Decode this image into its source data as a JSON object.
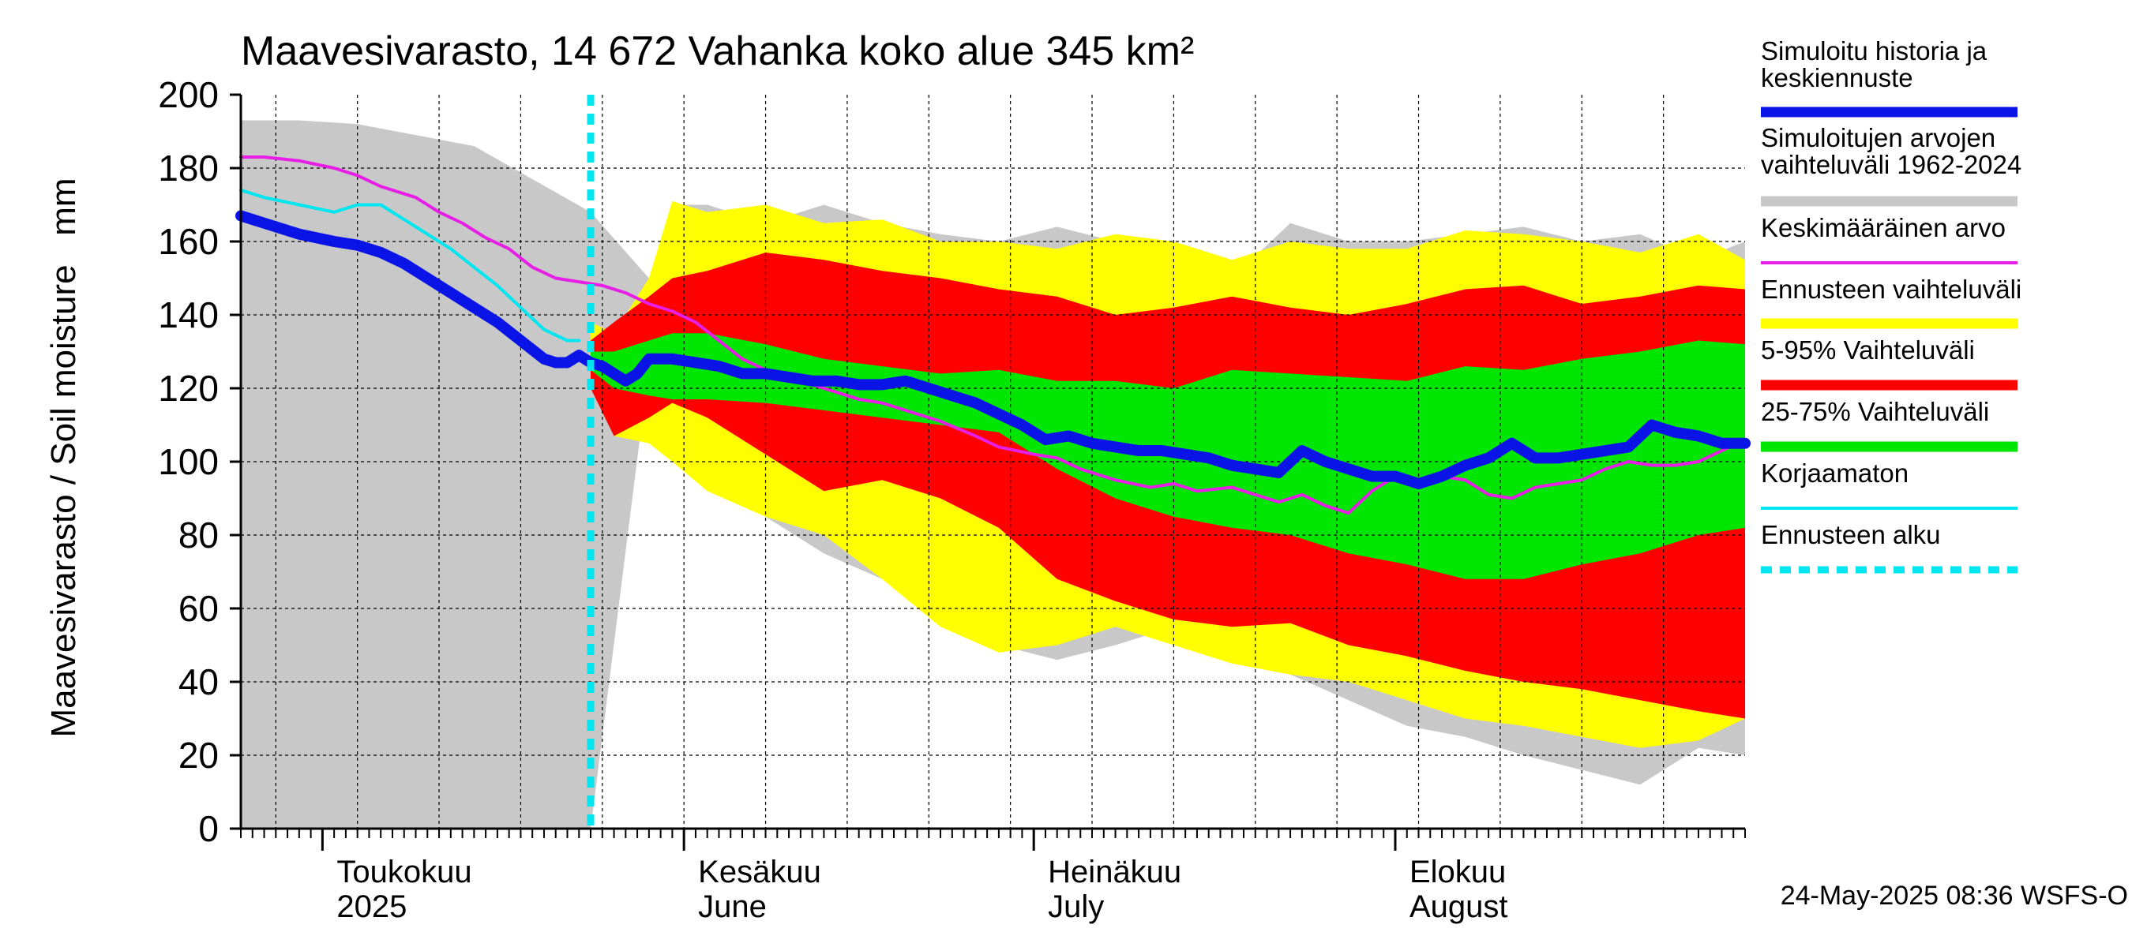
{
  "chart_data": {
    "type": "area",
    "title": "Maavesivarasto, 14 672 Vahanka koko alue 345 km²",
    "ylabel": "Maavesivarasto / Soil moisture   mm",
    "ylim": [
      0,
      200
    ],
    "yticks": [
      0,
      20,
      40,
      60,
      80,
      100,
      120,
      140,
      160,
      180,
      200
    ],
    "x_range": [
      "2025-04-24",
      "2025-08-31"
    ],
    "month_labels": [
      {
        "line1": "Toukokuu",
        "line2": "2025",
        "date": "2025-05-01"
      },
      {
        "line1": "Kesäkuu",
        "line2": "June",
        "date": "2025-06-01"
      },
      {
        "line1": "Heinäkuu",
        "line2": "July",
        "date": "2025-07-01"
      },
      {
        "line1": "Elokuu",
        "line2": "August",
        "date": "2025-08-01"
      }
    ],
    "forecast_start": "2025-05-24",
    "footer": "24-May-2025 08:36 WSFS-O",
    "legend": [
      {
        "label": "Simuloitu historia ja\nkeskiennuste",
        "color": "#0a14e6",
        "style": "thick"
      },
      {
        "label": "Simuloitujen arvojen\nvaihteluväli 1962-2024",
        "color": "#c8c8c8",
        "style": "band"
      },
      {
        "label": "Keskimääräinen arvo",
        "color": "#e61ee6",
        "style": "line"
      },
      {
        "label": "Ennusteen vaihteluväli",
        "color": "#ffff00",
        "style": "band"
      },
      {
        "label": "5-95% Vaihteluväli",
        "color": "#ff0000",
        "style": "band"
      },
      {
        "label": "25-75% Vaihteluväli",
        "color": "#00e600",
        "style": "band"
      },
      {
        "label": "Korjaamaton",
        "color": "#00e6f0",
        "style": "line"
      },
      {
        "label": "Ennusteen alku",
        "color": "#00e6f0",
        "style": "dashed"
      }
    ],
    "series": {
      "hist_range": {
        "name": "Simuloitujen arvojen vaihteluväli 1962-2024",
        "color": "#c8c8c8",
        "x": [
          0,
          5,
          10,
          20,
          30,
          35,
          37,
          40,
          45,
          50,
          55,
          60,
          65,
          70,
          75,
          80,
          85,
          90,
          95,
          100,
          105,
          110,
          115,
          120,
          125,
          129
        ],
        "upper": [
          193,
          193,
          192,
          186,
          168,
          150,
          170,
          170,
          165,
          170,
          165,
          162,
          160,
          164,
          160,
          160,
          150,
          165,
          160,
          160,
          162,
          164,
          160,
          162,
          155,
          160
        ],
        "lower": [
          null,
          null,
          null,
          null,
          null,
          126,
          108,
          100,
          85,
          75,
          68,
          60,
          50,
          46,
          50,
          55,
          48,
          42,
          35,
          28,
          25,
          20,
          16,
          12,
          22,
          20
        ]
      },
      "forecast_range": {
        "name": "Ennusteen vaihteluväli",
        "color": "#ffff00",
        "x": [
          30,
          32,
          35,
          37,
          40,
          45,
          50,
          55,
          60,
          65,
          70,
          75,
          80,
          85,
          90,
          95,
          100,
          105,
          110,
          115,
          120,
          125,
          129
        ],
        "upper": [
          138,
          135,
          150,
          171,
          168,
          170,
          165,
          166,
          160,
          160,
          158,
          162,
          160,
          155,
          160,
          158,
          158,
          163,
          162,
          160,
          157,
          162,
          155
        ],
        "lower": [
          125,
          107,
          105,
          100,
          92,
          85,
          80,
          68,
          55,
          48,
          50,
          55,
          50,
          45,
          42,
          40,
          35,
          30,
          28,
          25,
          22,
          24,
          30
        ]
      },
      "p5_95": {
        "name": "5-95% Vaihteluväli",
        "color": "#ff0000",
        "x": [
          30,
          32,
          35,
          37,
          40,
          45,
          50,
          55,
          60,
          65,
          70,
          75,
          80,
          85,
          90,
          95,
          100,
          105,
          110,
          115,
          120,
          125,
          129
        ],
        "upper": [
          133,
          138,
          145,
          150,
          152,
          157,
          155,
          152,
          150,
          147,
          145,
          140,
          142,
          145,
          142,
          140,
          143,
          147,
          148,
          143,
          145,
          148,
          147
        ],
        "lower": [
          120,
          107,
          112,
          116,
          112,
          102,
          92,
          95,
          90,
          82,
          68,
          62,
          57,
          55,
          56,
          50,
          47,
          43,
          40,
          38,
          35,
          32,
          30
        ]
      },
      "p25_75": {
        "name": "25-75% Vaihteluväli",
        "color": "#00e600",
        "x": [
          30,
          32,
          35,
          37,
          40,
          45,
          50,
          55,
          60,
          65,
          70,
          75,
          80,
          85,
          90,
          95,
          100,
          105,
          110,
          115,
          120,
          125,
          129
        ],
        "upper": [
          130,
          130,
          133,
          135,
          135,
          132,
          128,
          126,
          124,
          125,
          122,
          122,
          120,
          125,
          124,
          123,
          122,
          126,
          125,
          128,
          130,
          133,
          132
        ],
        "lower": [
          125,
          120,
          118,
          117,
          117,
          116,
          114,
          112,
          110,
          108,
          98,
          90,
          85,
          82,
          80,
          75,
          72,
          68,
          68,
          72,
          75,
          80,
          82
        ],
        "dash": false
      },
      "mean": {
        "name": "Keskimääräinen arvo",
        "color": "#e61ee6",
        "x": [
          0,
          2,
          5,
          8,
          10,
          12,
          15,
          17,
          19,
          21,
          23,
          25,
          27,
          29,
          31,
          33,
          35,
          37,
          39,
          41,
          43,
          45,
          47,
          50,
          53,
          55,
          57,
          60,
          63,
          65,
          68,
          70,
          72,
          75,
          78,
          80,
          82,
          85,
          87,
          89,
          91,
          93,
          95,
          97,
          99,
          101,
          103,
          105,
          107,
          109,
          111,
          113,
          115,
          117,
          119,
          121,
          123,
          125,
          127,
          129
        ],
        "values": [
          183,
          183,
          182,
          180,
          178,
          175,
          172,
          168,
          165,
          161,
          158,
          153,
          150,
          149,
          148,
          146,
          143,
          141,
          138,
          133,
          128,
          125,
          123,
          120,
          117,
          116,
          114,
          111,
          107,
          104,
          102,
          101,
          98,
          95,
          93,
          94,
          92,
          93,
          91,
          89,
          91,
          88,
          86,
          92,
          96,
          95,
          96,
          95,
          91,
          90,
          93,
          94,
          95,
          98,
          100,
          99,
          99,
          100,
          103,
          106
        ]
      },
      "uncorrected": {
        "name": "Korjaamaton",
        "color": "#00e6f0",
        "x": [
          0,
          2,
          5,
          8,
          10,
          12,
          14,
          16,
          18,
          20,
          22,
          24,
          26,
          28,
          29
        ],
        "values": [
          174,
          172,
          170,
          168,
          170,
          170,
          166,
          162,
          158,
          153,
          148,
          142,
          136,
          133,
          133
        ]
      },
      "main": {
        "name": "Simuloitu historia ja keskiennuste",
        "color": "#0a14e6",
        "x": [
          0,
          2,
          5,
          8,
          10,
          12,
          14,
          16,
          18,
          20,
          22,
          24,
          26,
          27,
          28,
          29,
          30,
          31,
          32,
          33,
          34,
          35,
          37,
          39,
          41,
          43,
          45,
          47,
          49,
          51,
          53,
          55,
          57,
          59,
          61,
          63,
          65,
          67,
          69,
          71,
          73,
          75,
          77,
          79,
          81,
          83,
          85,
          87,
          89,
          91,
          93,
          95,
          97,
          99,
          101,
          103,
          105,
          107,
          109,
          111,
          113,
          115,
          117,
          119,
          121,
          123,
          125,
          127,
          129
        ],
        "values": [
          167,
          165,
          162,
          160,
          159,
          157,
          154,
          150,
          146,
          142,
          138,
          133,
          128,
          127,
          127,
          129,
          127,
          126,
          124,
          122,
          124,
          128,
          128,
          127,
          126,
          124,
          124,
          123,
          122,
          122,
          121,
          121,
          122,
          120,
          118,
          116,
          113,
          110,
          106,
          107,
          105,
          104,
          103,
          103,
          102,
          101,
          99,
          98,
          97,
          103,
          100,
          98,
          96,
          96,
          94,
          96,
          99,
          101,
          105,
          101,
          101,
          102,
          103,
          104,
          110,
          108,
          107,
          105,
          105
        ]
      }
    }
  }
}
